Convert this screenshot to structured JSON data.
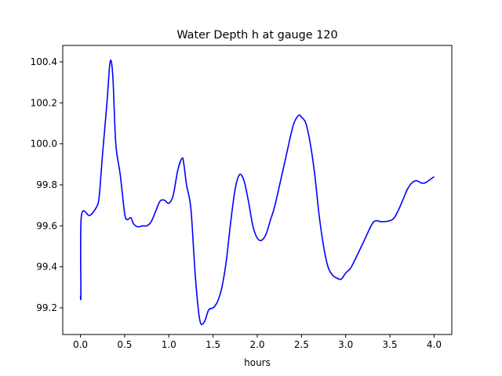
{
  "chart_data": {
    "type": "line",
    "title": "Water Depth h at gauge 120",
    "xlabel": "hours",
    "ylabel": "",
    "xlim": [
      -0.2,
      4.2
    ],
    "ylim": [
      99.07,
      100.48
    ],
    "xticks": [
      0.0,
      0.5,
      1.0,
      1.5,
      2.0,
      2.5,
      3.0,
      3.5,
      4.0
    ],
    "xtick_labels": [
      "0.0",
      "0.5",
      "1.0",
      "1.5",
      "2.0",
      "2.5",
      "3.0",
      "3.5",
      "4.0"
    ],
    "yticks": [
      99.2,
      99.4,
      99.6,
      99.8,
      100.0,
      100.2,
      100.4
    ],
    "ytick_labels": [
      "99.2",
      "99.4",
      "99.6",
      "99.8",
      "100.0",
      "100.2",
      "100.4"
    ],
    "grid": false,
    "series": [
      {
        "color": "#0000ff",
        "x": [
          0.0,
          0.005,
          0.01,
          0.1,
          0.15,
          0.2,
          0.22,
          0.25,
          0.3,
          0.33,
          0.35,
          0.37,
          0.4,
          0.45,
          0.5,
          0.53,
          0.57,
          0.6,
          0.65,
          0.7,
          0.75,
          0.8,
          0.85,
          0.9,
          0.95,
          1.0,
          1.05,
          1.1,
          1.15,
          1.17,
          1.2,
          1.25,
          1.3,
          1.35,
          1.4,
          1.45,
          1.5,
          1.55,
          1.6,
          1.65,
          1.7,
          1.75,
          1.8,
          1.85,
          1.9,
          1.95,
          2.0,
          2.05,
          2.1,
          2.15,
          2.2,
          2.3,
          2.4,
          2.45,
          2.48,
          2.5,
          2.55,
          2.6,
          2.65,
          2.7,
          2.75,
          2.8,
          2.85,
          2.9,
          2.95,
          3.0,
          3.05,
          3.1,
          3.2,
          3.3,
          3.35,
          3.4,
          3.5,
          3.55,
          3.6,
          3.65,
          3.7,
          3.75,
          3.8,
          3.85,
          3.9,
          4.0
        ],
        "y": [
          99.26,
          99.27,
          99.645,
          99.65,
          99.67,
          99.71,
          99.78,
          99.95,
          100.2,
          100.38,
          100.4,
          100.3,
          100.0,
          99.85,
          99.66,
          99.63,
          99.64,
          99.61,
          99.595,
          99.6,
          99.6,
          99.62,
          99.67,
          99.72,
          99.725,
          99.71,
          99.75,
          99.87,
          99.93,
          99.9,
          99.8,
          99.68,
          99.35,
          99.14,
          99.13,
          99.19,
          99.2,
          99.23,
          99.3,
          99.43,
          99.62,
          99.78,
          99.85,
          99.82,
          99.72,
          99.6,
          99.54,
          99.53,
          99.56,
          99.63,
          99.7,
          99.89,
          100.08,
          100.13,
          100.14,
          100.13,
          100.1,
          100.0,
          99.85,
          99.65,
          99.5,
          99.4,
          99.36,
          99.345,
          99.34,
          99.37,
          99.39,
          99.43,
          99.52,
          99.61,
          99.625,
          99.62,
          99.625,
          99.64,
          99.68,
          99.73,
          99.78,
          99.81,
          99.82,
          99.81,
          99.81,
          99.84
        ]
      }
    ]
  }
}
